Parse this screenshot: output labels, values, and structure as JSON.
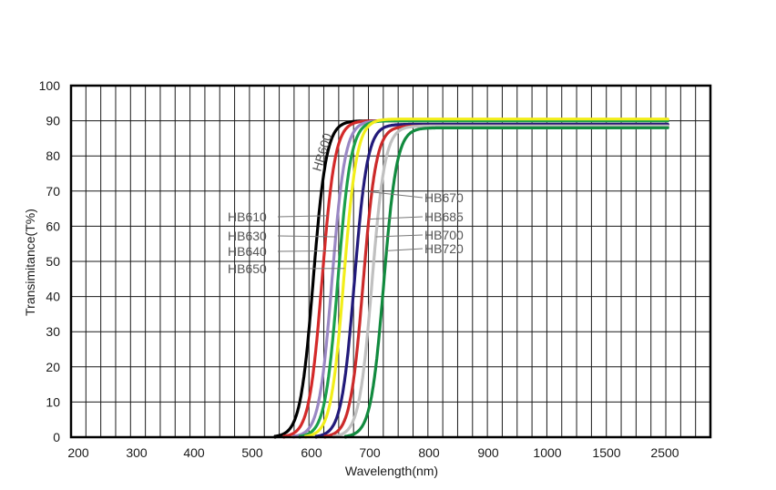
{
  "chart_data": {
    "type": "line",
    "xlabel": "Wavelength(nm)",
    "ylabel": "Transimitance(T%)",
    "x_ticks": [
      "200",
      "300",
      "400",
      "500",
      "600",
      "700",
      "800",
      "900",
      "1000",
      "1500",
      "2500"
    ],
    "y_ticks": [
      "0",
      "10",
      "20",
      "30",
      "40",
      "50",
      "60",
      "70",
      "80",
      "90",
      "100"
    ],
    "ylim": [
      0,
      100
    ],
    "grid": true,
    "series": [
      {
        "name": "HB600",
        "color": "#000000",
        "cut_on_nm": 600,
        "plateau": 90
      },
      {
        "name": "HB610",
        "color": "#d42a2a",
        "cut_on_nm": 615,
        "plateau": 90
      },
      {
        "name": "HB630",
        "color": "#9a88c4",
        "cut_on_nm": 632,
        "plateau": 90
      },
      {
        "name": "HB640",
        "color": "#1aa04a",
        "cut_on_nm": 642,
        "plateau": 90
      },
      {
        "name": "HB650",
        "color": "#f2ee1a",
        "cut_on_nm": 652,
        "plateau": 90.5
      },
      {
        "name": "HB670",
        "color": "#221a7a",
        "cut_on_nm": 670,
        "plateau": 89
      },
      {
        "name": "HB685",
        "color": "#cc2a2a",
        "cut_on_nm": 685,
        "plateau": 88.5
      },
      {
        "name": "HB700",
        "color": "#c0c0c0",
        "cut_on_nm": 700,
        "plateau": 88.5
      },
      {
        "name": "HB720",
        "color": "#118a3e",
        "cut_on_nm": 720,
        "plateau": 88
      }
    ]
  }
}
